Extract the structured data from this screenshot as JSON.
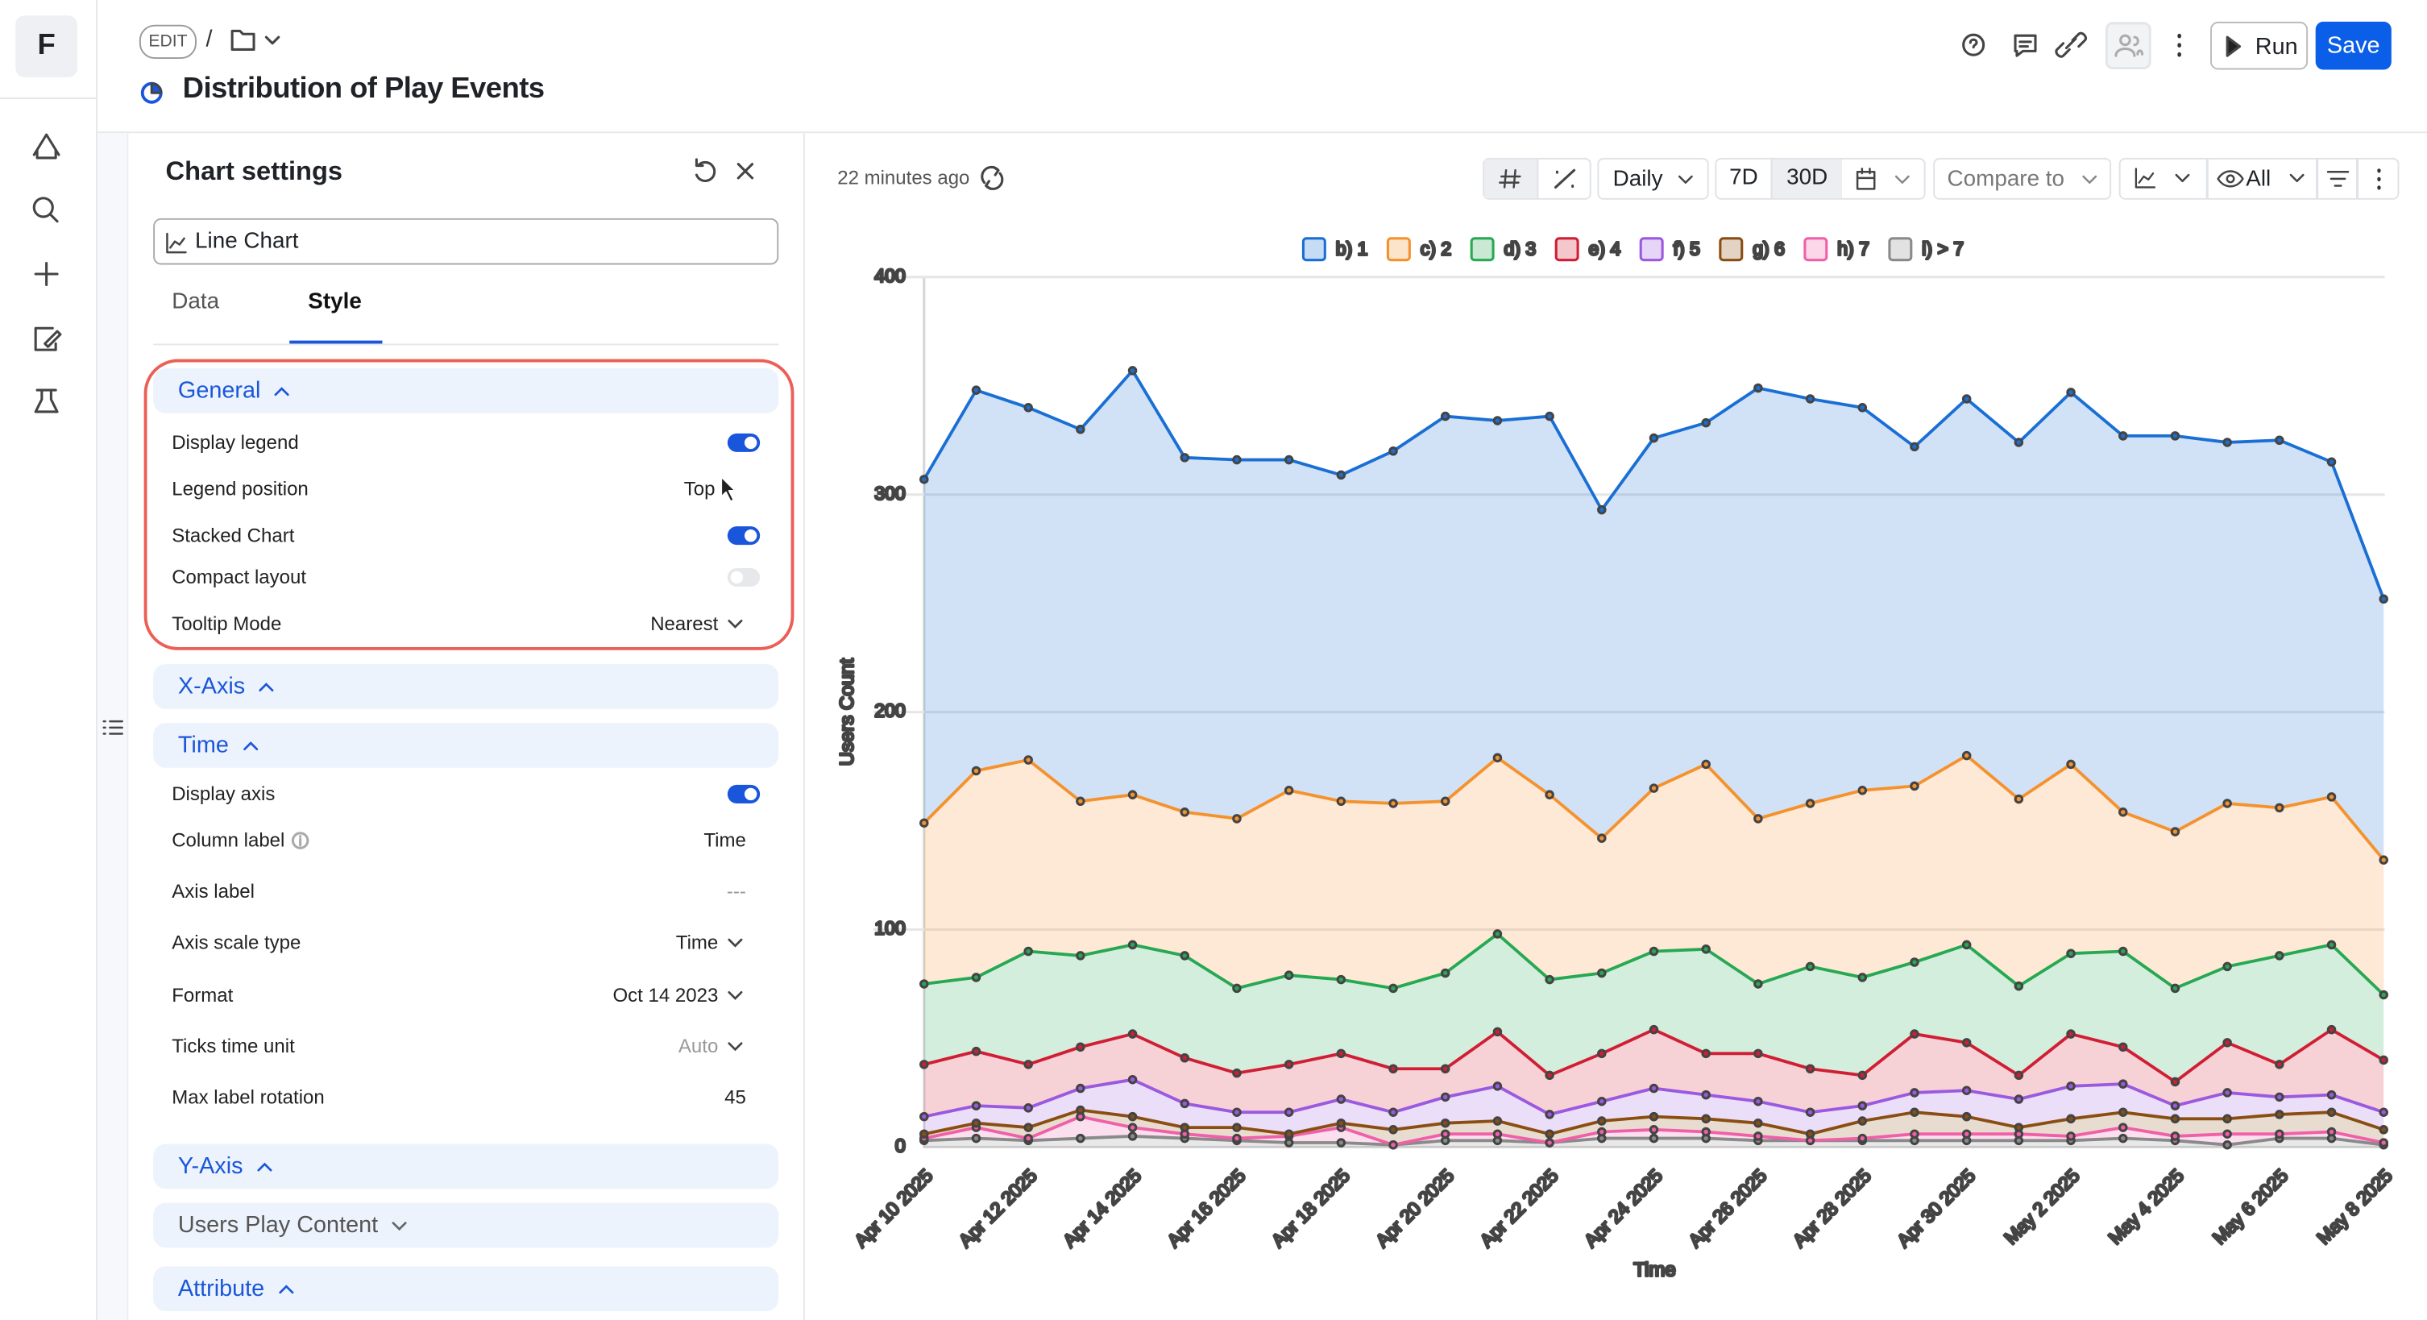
{
  "nav": {
    "logo": "F"
  },
  "header": {
    "mode": "EDIT",
    "separator": "/",
    "title": "Distribution of Play Events",
    "run": "Run",
    "save": "Save"
  },
  "settings": {
    "title": "Chart settings",
    "chart_type": "Line Chart",
    "tabs": [
      "Data",
      "Style"
    ],
    "active_tab": 1,
    "sections": [
      {
        "title": "General",
        "expanded": true,
        "highlighted": true,
        "rows": [
          {
            "label": "Display legend",
            "toggle": true
          },
          {
            "label": "Legend position",
            "value": "Top"
          },
          {
            "label": "Stacked Chart",
            "toggle": true
          },
          {
            "label": "Compact layout",
            "toggle": false
          },
          {
            "label": "Tooltip Mode",
            "value": "Nearest",
            "dropdown": true
          }
        ]
      },
      {
        "title": "X-Axis",
        "expanded": true
      },
      {
        "title": "Time",
        "expanded": true,
        "rows": [
          {
            "label": "Display axis",
            "toggle": true
          },
          {
            "label": "Column label",
            "info": true,
            "value": "Time"
          },
          {
            "label": "Axis label",
            "value": "---",
            "muted": true
          },
          {
            "label": "Axis scale type",
            "value": "Time",
            "dropdown": true
          },
          {
            "label": "Format",
            "value": "Oct 14 2023",
            "dropdown": true
          },
          {
            "label": "Ticks time unit",
            "value": "Auto",
            "dropdown": true,
            "muted": true
          },
          {
            "label": "Max label rotation",
            "value": "45"
          }
        ]
      },
      {
        "title": "Y-Axis",
        "expanded": true
      },
      {
        "title": "Users Play Content",
        "expanded": false,
        "muted": true
      },
      {
        "title": "Attribute",
        "expanded": true
      }
    ]
  },
  "toolbar": {
    "updated": "22 minutes ago",
    "granularity": "Daily",
    "ranges": [
      "7D",
      "30D"
    ],
    "active_range": 1,
    "compare": "Compare to",
    "visibility": "All"
  },
  "chart_data": {
    "type": "line",
    "stacked": true,
    "fill": true,
    "legend": "top",
    "grid": true,
    "xlabel": "Time",
    "ylabel": "Users Count",
    "categories": [
      "Apr 10 2025",
      null,
      "Apr 12 2025",
      null,
      "Apr 14 2025",
      null,
      "Apr 16 2025",
      null,
      "Apr 18 2025",
      null,
      "Apr 20 2025",
      null,
      "Apr 22 2025",
      null,
      "Apr 24 2025",
      null,
      "Apr 26 2025",
      null,
      "Apr 28 2025",
      null,
      "Apr 30 2025",
      null,
      "May 2 2025",
      null,
      "May 4 2025",
      null,
      "May 6 2025",
      null,
      "May 8 2025"
    ],
    "ylim": [
      0,
      400
    ],
    "yticks": [
      0,
      100,
      200,
      300,
      400
    ],
    "series": [
      {
        "name": "b) 1",
        "color": "#1a6fd4",
        "values": [
          158,
          175,
          162,
          171,
          195,
          163,
          165,
          152,
          150,
          162,
          177,
          155,
          174,
          151,
          161,
          157,
          198,
          186,
          176,
          156,
          164,
          164,
          171,
          173,
          182,
          166,
          169,
          154,
          120
        ]
      },
      {
        "name": "c) 2",
        "color": "#f5922e",
        "values": [
          74,
          95,
          88,
          71,
          69,
          66,
          78,
          85,
          82,
          85,
          79,
          81,
          85,
          62,
          75,
          85,
          76,
          75,
          86,
          81,
          87,
          86,
          87,
          64,
          72,
          75,
          68,
          68,
          62
        ]
      },
      {
        "name": "d) 3",
        "color": "#27a853",
        "values": [
          37,
          34,
          52,
          42,
          41,
          47,
          39,
          41,
          34,
          37,
          44,
          45,
          44,
          37,
          36,
          48,
          32,
          47,
          45,
          33,
          45,
          41,
          37,
          44,
          43,
          35,
          50,
          39,
          30
        ]
      },
      {
        "name": "e) 4",
        "color": "#d01e34",
        "values": [
          24,
          25,
          20,
          19,
          21,
          21,
          18,
          22,
          21,
          20,
          13,
          25,
          18,
          22,
          27,
          19,
          22,
          20,
          14,
          27,
          22,
          11,
          24,
          17,
          11,
          23,
          15,
          30,
          24
        ]
      },
      {
        "name": "f) 5",
        "color": "#9b59e0",
        "values": [
          8,
          8,
          9,
          10,
          17,
          11,
          7,
          10,
          11,
          8,
          12,
          16,
          9,
          9,
          13,
          11,
          10,
          10,
          7,
          9,
          12,
          13,
          15,
          13,
          6,
          12,
          8,
          8,
          8
        ]
      },
      {
        "name": "g) 6",
        "color": "#8a4e12",
        "values": [
          2,
          2,
          5,
          3,
          5,
          3,
          5,
          1,
          2,
          7,
          5,
          6,
          4,
          5,
          6,
          6,
          6,
          3,
          8,
          10,
          8,
          3,
          8,
          7,
          8,
          7,
          9,
          9,
          6
        ]
      },
      {
        "name": "h) 7",
        "color": "#f060a8",
        "values": [
          1,
          5,
          1,
          10,
          4,
          2,
          1,
          3,
          7,
          0,
          3,
          3,
          0,
          3,
          4,
          3,
          2,
          0,
          1,
          3,
          3,
          3,
          2,
          5,
          2,
          5,
          2,
          3,
          1
        ]
      },
      {
        "name": "i) > 7",
        "color": "#8a8a8a",
        "values": [
          3,
          4,
          3,
          4,
          5,
          4,
          3,
          2,
          2,
          1,
          3,
          3,
          2,
          4,
          4,
          4,
          3,
          3,
          3,
          3,
          3,
          3,
          3,
          4,
          3,
          1,
          4,
          4,
          1
        ]
      }
    ]
  }
}
